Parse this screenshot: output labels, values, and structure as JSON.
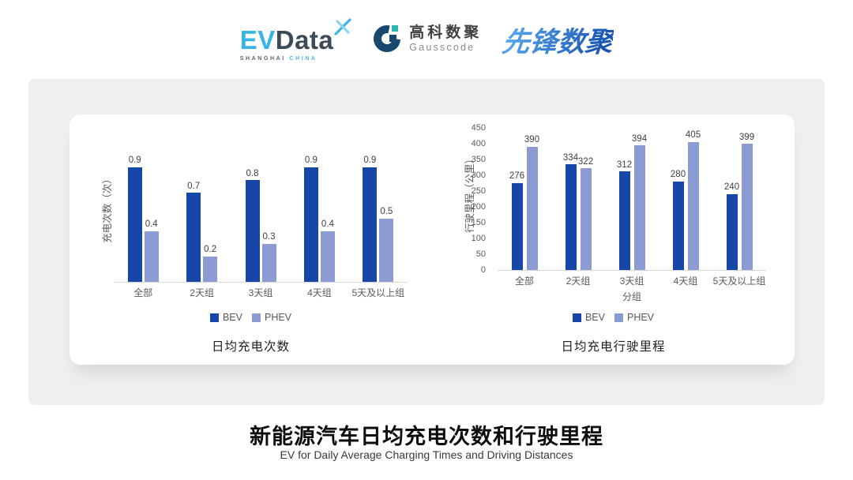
{
  "header": {
    "evdata": {
      "ev": "EV",
      "data": "Data",
      "sub_left": "SHANGHAI",
      "sub_right": "CHINA"
    },
    "gausscode": {
      "cn": "高科数聚",
      "en": "Gausscode"
    },
    "xianfeng": {
      "text": "先锋数聚"
    }
  },
  "footer": {
    "title": "新能源汽车日均充电次数和行驶里程",
    "subtitle": "EV for Daily Average Charging Times and Driving Distances"
  },
  "colors": {
    "bev": "#1546A8",
    "phev": "#8C9BD4",
    "panel_bg": "#efefef",
    "axis_line": "#d9d9d9"
  },
  "chart_data": [
    {
      "type": "bar",
      "title": "日均充电次数",
      "ylabel": "充电次数（次）",
      "xlabel": "",
      "categories": [
        "全部",
        "2天组",
        "3天组",
        "4天组",
        "5天及以上组"
      ],
      "series": [
        {
          "name": "BEV",
          "color": "#1546A8",
          "values": [
            0.9,
            0.7,
            0.8,
            0.9,
            0.9
          ]
        },
        {
          "name": "PHEV",
          "color": "#8C9BD4",
          "values": [
            0.4,
            0.2,
            0.3,
            0.4,
            0.5
          ]
        }
      ],
      "ylim": [
        0,
        1.0
      ],
      "yticks": [],
      "grid": false,
      "legend_position": "bottom",
      "value_labels": true
    },
    {
      "type": "bar",
      "title": "日均充电行驶里程",
      "ylabel": "行驶里程（公里）",
      "xlabel": "分组",
      "categories": [
        "全部",
        "2天组",
        "3天组",
        "4天组",
        "5天及以上组"
      ],
      "series": [
        {
          "name": "BEV",
          "color": "#1546A8",
          "values": [
            276,
            334,
            312,
            280,
            240
          ]
        },
        {
          "name": "PHEV",
          "color": "#8C9BD4",
          "values": [
            390,
            322,
            394,
            405,
            399
          ]
        }
      ],
      "ylim": [
        0,
        450
      ],
      "yticks": [
        0,
        50,
        100,
        150,
        200,
        250,
        300,
        350,
        400,
        450
      ],
      "grid": false,
      "legend_position": "bottom",
      "value_labels": true
    }
  ]
}
